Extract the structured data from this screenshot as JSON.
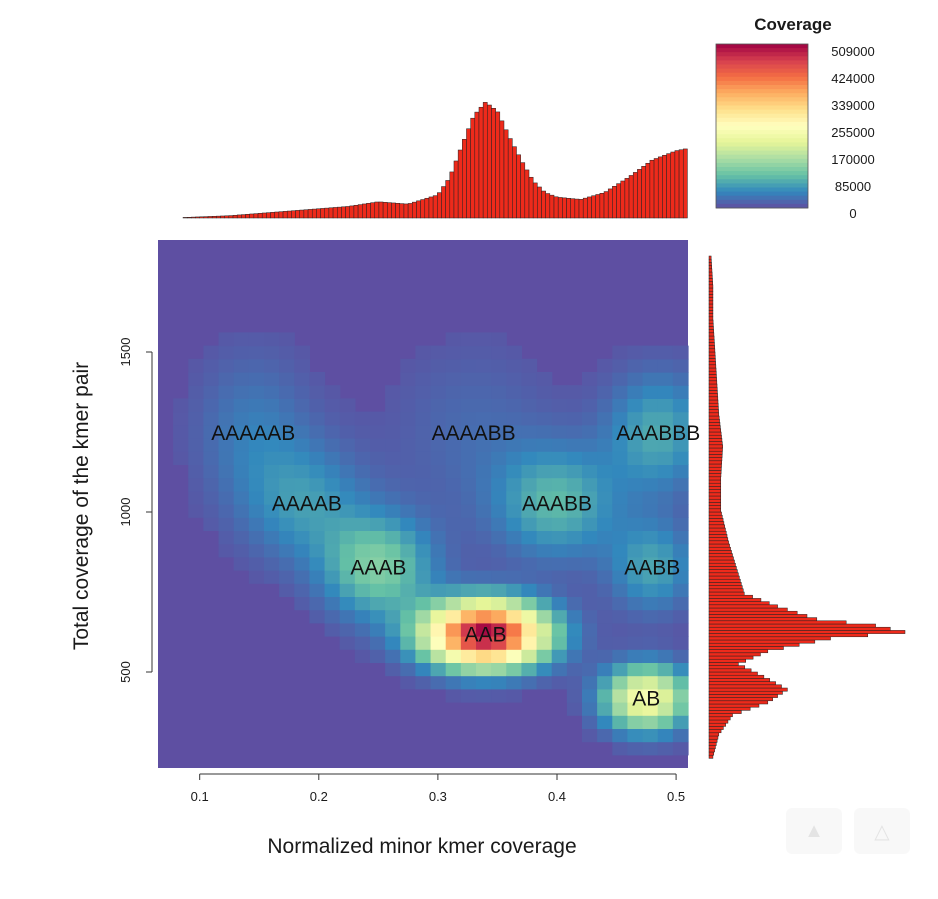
{
  "chart_data": {
    "type": "heatmap",
    "xlabel": "Normalized minor kmer coverage",
    "ylabel": "Total coverage of the kmer pair",
    "x_ticks": [
      0.1,
      0.2,
      0.3,
      0.4,
      0.5
    ],
    "y_ticks": [
      500,
      1000,
      1500
    ],
    "xlim": [
      0.065,
      0.51
    ],
    "ylim": [
      200,
      1850
    ],
    "legend": {
      "title": "Coverage",
      "tick_labels": [
        "509000",
        "424000",
        "339000",
        "255000",
        "170000",
        "85000",
        "0"
      ],
      "max": 509000,
      "placement": "top-right"
    },
    "colors": {
      "background": "#5e4fa2",
      "hist_bar": "#ee2a1b",
      "hist_edge": "#222222",
      "scale": [
        "#5e4fa2",
        "#3288bd",
        "#66c2a5",
        "#abdda4",
        "#e6f598",
        "#ffffbf",
        "#fee08b",
        "#fdae61",
        "#f46d43",
        "#d53e4f",
        "#9e0142"
      ]
    },
    "clusters": [
      {
        "label": "AB",
        "x": 0.475,
        "y": 420,
        "value": 240000,
        "sx": 0.025,
        "sy": 70
      },
      {
        "label": "AAB",
        "x": 0.34,
        "y": 620,
        "value": 509000,
        "sx": 0.035,
        "sy": 70
      },
      {
        "label": "AAAB",
        "x": 0.25,
        "y": 830,
        "value": 120000,
        "sx": 0.032,
        "sy": 110
      },
      {
        "label": "AABB",
        "x": 0.48,
        "y": 830,
        "value": 75000,
        "sx": 0.025,
        "sy": 100
      },
      {
        "label": "AAAAB",
        "x": 0.19,
        "y": 1030,
        "value": 60000,
        "sx": 0.035,
        "sy": 130
      },
      {
        "label": "AAABB",
        "x": 0.4,
        "y": 1030,
        "value": 90000,
        "sx": 0.035,
        "sy": 120
      },
      {
        "label": "AAAAAB",
        "x": 0.145,
        "y": 1250,
        "value": 40000,
        "sx": 0.035,
        "sy": 180
      },
      {
        "label": "AAAABB",
        "x": 0.33,
        "y": 1250,
        "value": 25000,
        "sx": 0.05,
        "sy": 200
      },
      {
        "label": "AAABBB",
        "x": 0.485,
        "y": 1250,
        "value": 80000,
        "sx": 0.03,
        "sy": 130
      }
    ],
    "top_histogram": {
      "bins_x": [
        0.075,
        0.125,
        0.175,
        0.2,
        0.225,
        0.25,
        0.275,
        0.3,
        0.31,
        0.32,
        0.33,
        0.34,
        0.35,
        0.36,
        0.37,
        0.38,
        0.39,
        0.4,
        0.42,
        0.44,
        0.46,
        0.48,
        0.5,
        0.51
      ],
      "heights": [
        0.0,
        0.02,
        0.06,
        0.08,
        0.1,
        0.14,
        0.12,
        0.2,
        0.35,
        0.62,
        0.88,
        1.0,
        0.92,
        0.7,
        0.5,
        0.32,
        0.22,
        0.18,
        0.16,
        0.22,
        0.35,
        0.5,
        0.58,
        0.6
      ]
    },
    "right_histogram": {
      "bins_y": [
        230,
        300,
        360,
        400,
        440,
        480,
        520,
        560,
        600,
        620,
        640,
        660,
        700,
        740,
        780,
        820,
        860,
        900,
        1000,
        1100,
        1200,
        1300,
        1400,
        1500,
        1600,
        1700,
        1800
      ],
      "heights": [
        0.02,
        0.05,
        0.12,
        0.3,
        0.4,
        0.28,
        0.15,
        0.3,
        0.62,
        1.0,
        0.85,
        0.55,
        0.35,
        0.18,
        0.16,
        0.14,
        0.12,
        0.1,
        0.06,
        0.06,
        0.07,
        0.05,
        0.04,
        0.03,
        0.02,
        0.02,
        0.01
      ]
    }
  },
  "watermark": {
    "icons": [
      "image-icon",
      "warning-icon"
    ]
  }
}
